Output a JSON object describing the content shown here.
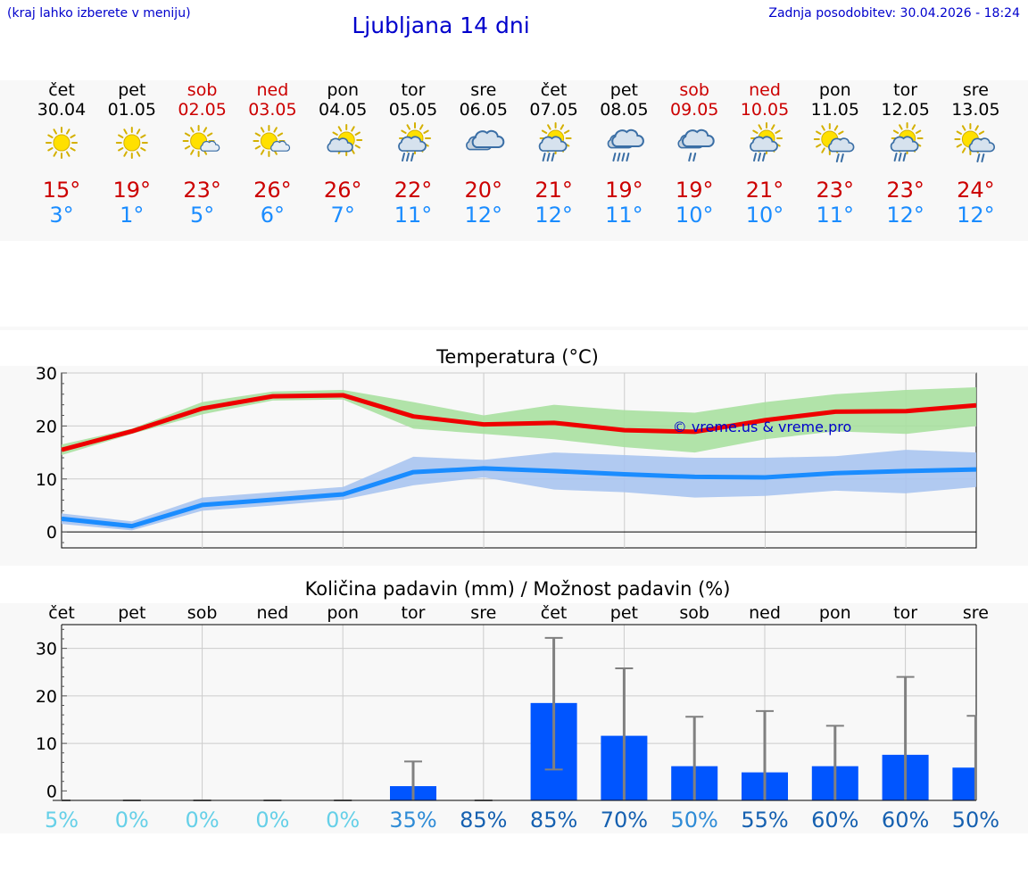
{
  "header": {
    "location_hint": "(kraj lahko izberete v meniju)",
    "title": "Ljubljana 14 dni",
    "updated": "Zadnja posodobitev: 30.04.2026 - 18:24"
  },
  "days": [
    {
      "day": "čet",
      "date": "30.04",
      "weekend": false,
      "icon": "sunny-icon",
      "max": "15°",
      "min": "3°"
    },
    {
      "day": "pet",
      "date": "01.05",
      "weekend": false,
      "icon": "sunny-icon",
      "max": "19°",
      "min": "1°"
    },
    {
      "day": "sob",
      "date": "02.05",
      "weekend": true,
      "icon": "sun-small-cloud-icon",
      "max": "23°",
      "min": "5°"
    },
    {
      "day": "ned",
      "date": "03.05",
      "weekend": true,
      "icon": "sun-small-cloud-icon",
      "max": "26°",
      "min": "6°"
    },
    {
      "day": "pon",
      "date": "04.05",
      "weekend": false,
      "icon": "partly-cloudy-icon",
      "max": "26°",
      "min": "7°"
    },
    {
      "day": "tor",
      "date": "05.05",
      "weekend": false,
      "icon": "sun-cloud-rain-icon",
      "max": "22°",
      "min": "11°"
    },
    {
      "day": "sre",
      "date": "06.05",
      "weekend": false,
      "icon": "cloudy-icon",
      "max": "20°",
      "min": "12°"
    },
    {
      "day": "čet",
      "date": "07.05",
      "weekend": false,
      "icon": "sun-cloud-rain-icon",
      "max": "21°",
      "min": "12°"
    },
    {
      "day": "pet",
      "date": "08.05",
      "weekend": false,
      "icon": "cloud-rain-icon",
      "max": "19°",
      "min": "11°"
    },
    {
      "day": "sob",
      "date": "09.05",
      "weekend": true,
      "icon": "cloud-light-rain-icon",
      "max": "19°",
      "min": "10°"
    },
    {
      "day": "ned",
      "date": "10.05",
      "weekend": true,
      "icon": "sun-cloud-rain-icon",
      "max": "21°",
      "min": "10°"
    },
    {
      "day": "pon",
      "date": "11.05",
      "weekend": false,
      "icon": "sun-cloud-light-rain-icon",
      "max": "23°",
      "min": "11°"
    },
    {
      "day": "tor",
      "date": "12.05",
      "weekend": false,
      "icon": "sun-cloud-rain-icon",
      "max": "23°",
      "min": "12°"
    },
    {
      "day": "sre",
      "date": "13.05",
      "weekend": false,
      "icon": "sun-cloud-light-rain-icon",
      "max": "24°",
      "min": "12°"
    }
  ],
  "colors": {
    "max_text": "#cc0000",
    "min_text": "#1a8cff",
    "weekend": "#cc0000",
    "max_line": "#ee0000",
    "max_band": "#a8e0a0",
    "min_line": "#1a8cff",
    "min_band": "#a8c4f0",
    "precip_bar": "#0055ff",
    "whisker": "#808080",
    "watermark": "#0000cc"
  },
  "chart_data": [
    {
      "type": "line",
      "title": "Temperatura (°C)",
      "ylim": [
        -3,
        30
      ],
      "yticks": [
        "0",
        "10",
        "20",
        "30"
      ],
      "x": [
        0,
        1,
        2,
        3,
        4,
        5,
        6,
        7,
        8,
        9,
        10,
        11,
        12,
        13
      ],
      "series": [
        {
          "name": "max",
          "values": [
            15.5,
            19,
            23.3,
            25.6,
            25.8,
            21.8,
            20.3,
            20.6,
            19.2,
            18.9,
            21.1,
            22.7,
            22.8,
            23.9
          ],
          "band_low": [
            14.5,
            18.5,
            22.2,
            24.8,
            25.0,
            19.5,
            18.5,
            17.5,
            16.0,
            15.0,
            17.5,
            19.0,
            18.5,
            20.0
          ],
          "band_high": [
            16.5,
            19.5,
            24.5,
            26.5,
            26.8,
            24.5,
            22.0,
            24.0,
            23.0,
            22.5,
            24.5,
            26.0,
            26.8,
            27.3
          ]
        },
        {
          "name": "min",
          "values": [
            2.5,
            1.1,
            5.1,
            6.1,
            7.1,
            11.3,
            12,
            11.5,
            10.9,
            10.4,
            10.3,
            11.1,
            11.5,
            11.8
          ],
          "band_low": [
            1.5,
            0.3,
            4.0,
            5.0,
            6.1,
            8.8,
            10.3,
            8.0,
            7.5,
            6.5,
            6.8,
            7.8,
            7.3,
            8.5
          ],
          "band_high": [
            3.5,
            2.0,
            6.5,
            7.5,
            8.5,
            14.2,
            13.6,
            15.0,
            14.5,
            14.0,
            14.0,
            14.3,
            15.5,
            15.0
          ]
        }
      ],
      "watermark": "© vreme.us & vreme.pro"
    },
    {
      "type": "bar",
      "title": "Količina padavin (mm) / Možnost padavin (%)",
      "categories": [
        "čet",
        "pet",
        "sob",
        "ned",
        "pon",
        "tor",
        "sre",
        "čet",
        "pet",
        "sob",
        "ned",
        "pon",
        "tor",
        "sre"
      ],
      "values": [
        0,
        0,
        0,
        0,
        0,
        1,
        0,
        18.5,
        11.6,
        5.2,
        3.9,
        5.2,
        7.6,
        4.9
      ],
      "whisker_low": [
        0,
        0,
        0,
        0,
        0,
        0,
        0,
        4.5,
        0,
        0,
        0,
        0,
        0,
        0
      ],
      "whisker_high": [
        0,
        0,
        0,
        0,
        0,
        6.2,
        0,
        32.2,
        25.8,
        15.6,
        16.8,
        13.7,
        24,
        15.8
      ],
      "ylim": [
        -2,
        35
      ],
      "yticks": [
        "0",
        "10",
        "20",
        "30"
      ],
      "probability": [
        "5%",
        "0%",
        "0%",
        "0%",
        "0%",
        "35%",
        "85%",
        "85%",
        "70%",
        "50%",
        "55%",
        "60%",
        "60%",
        "50%"
      ],
      "probability_colors": [
        "#66d0e8",
        "#66d0e8",
        "#66d0e8",
        "#66d0e8",
        "#66d0e8",
        "#2e8bd6",
        "#1560b0",
        "#1560b0",
        "#1560b0",
        "#2e8bd6",
        "#1560b0",
        "#1560b0",
        "#1560b0",
        "#1560b0"
      ]
    }
  ]
}
